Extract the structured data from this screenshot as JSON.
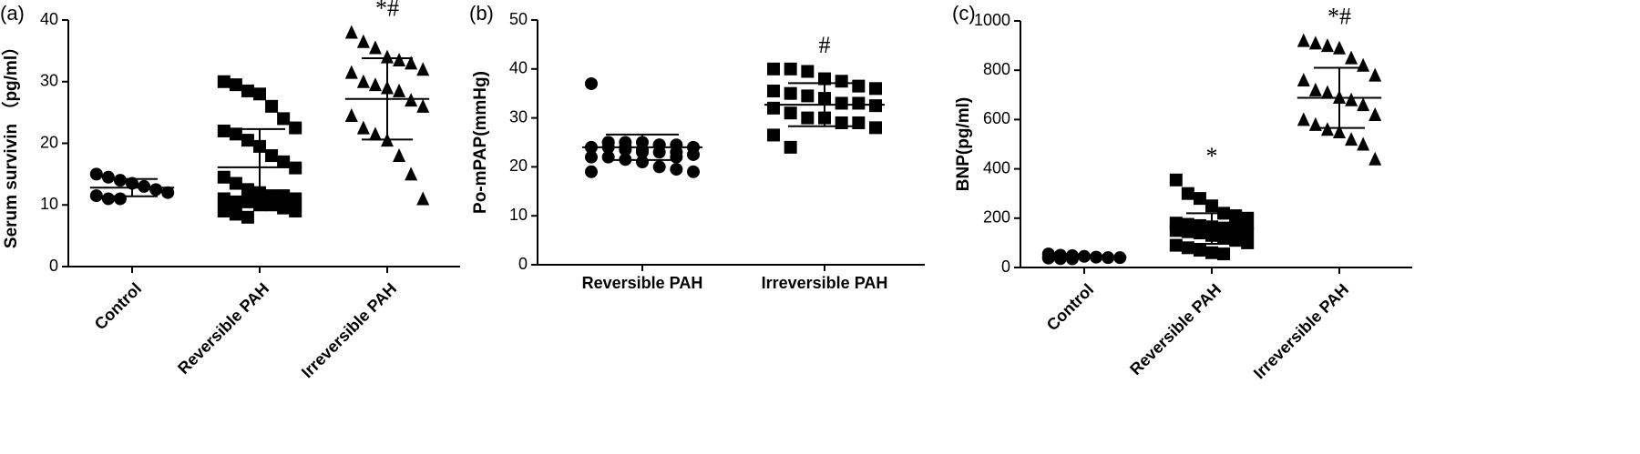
{
  "chart_data": [
    {
      "type": "strip",
      "panel_label": "(a)",
      "ylabel": "Serum survivin （pg/ml）",
      "categories": [
        "Control",
        "Reversible PAH",
        "Irreversible PAH"
      ],
      "markers": [
        "circle",
        "square",
        "triangle"
      ],
      "color": "#000000",
      "xtick_rotation": 45,
      "values": [
        [
          15,
          14.5,
          14,
          13.5,
          13,
          12.5,
          12,
          11.5,
          11,
          11
        ],
        [
          30,
          29.5,
          28.5,
          28,
          26,
          24,
          22.5,
          22,
          21.5,
          20.5,
          19.5,
          18,
          17,
          16,
          14.5,
          13.5,
          12.5,
          12,
          11.5,
          11.5,
          11,
          11,
          10.5,
          10.5,
          10,
          10,
          9.5,
          9,
          9,
          8.5,
          8
        ],
        [
          38,
          36.5,
          35.5,
          34,
          33.5,
          33,
          32,
          31.5,
          30,
          29.5,
          29,
          28.5,
          27,
          26,
          24.5,
          22.5,
          21.5,
          20.5,
          18,
          15,
          11
        ]
      ],
      "means": [
        12.8,
        16.1,
        27.2
      ],
      "sds": [
        1.4,
        6.2,
        6.6
      ],
      "annotations": [
        null,
        null,
        "*#"
      ],
      "ylim": [
        0,
        40
      ],
      "yticks": [
        0,
        10,
        20,
        30,
        40
      ]
    },
    {
      "type": "strip",
      "panel_label": "(b)",
      "ylabel": "Po-mPAP(mmHg)",
      "categories": [
        "Reversible PAH",
        "Irreversible PAH"
      ],
      "markers": [
        "circle",
        "square"
      ],
      "color": "#000000",
      "xtick_rotation": 0,
      "values": [
        [
          37,
          25,
          25,
          25,
          24.5,
          24.5,
          24,
          24,
          24,
          23.5,
          23.5,
          23,
          23,
          22.5,
          22,
          22,
          21.5,
          21,
          20,
          19.5,
          19,
          19,
          25,
          24,
          23,
          24.5,
          22
        ],
        [
          40,
          40,
          39.5,
          38,
          37.5,
          36.5,
          36,
          35.5,
          35,
          34.5,
          34,
          33,
          33,
          32.5,
          32,
          31,
          30,
          30,
          29,
          29,
          28,
          26.5,
          24
        ]
      ],
      "means": [
        24,
        32.7
      ],
      "sds": [
        2.6,
        4.4
      ],
      "annotations": [
        null,
        "#"
      ],
      "ylim": [
        0,
        50
      ],
      "yticks": [
        0,
        10,
        20,
        30,
        40,
        50
      ]
    },
    {
      "type": "strip",
      "panel_label": "(c)",
      "ylabel": "BNP(pg/ml)",
      "categories": [
        "Control",
        "Reversible PAH",
        "Irreversible PAH"
      ],
      "markers": [
        "circle",
        "square",
        "triangle"
      ],
      "color": "#000000",
      "xtick_rotation": 45,
      "values": [
        [
          55,
          50,
          48,
          45,
          42,
          40,
          40,
          38,
          36,
          35
        ],
        [
          355,
          300,
          280,
          250,
          220,
          210,
          200,
          180,
          175,
          170,
          165,
          160,
          160,
          150,
          150,
          145,
          140,
          130,
          120,
          110,
          100,
          90,
          80,
          70,
          60,
          55
        ],
        [
          920,
          910,
          900,
          890,
          850,
          820,
          780,
          760,
          720,
          710,
          690,
          680,
          660,
          620,
          600,
          580,
          560,
          550,
          520,
          500,
          440
        ]
      ],
      "means": [
        43,
        158,
        688
      ],
      "sds": [
        6,
        62,
        122
      ],
      "annotations": [
        null,
        "*",
        "*#"
      ],
      "ylim": [
        0,
        1000
      ],
      "yticks": [
        0,
        200,
        400,
        600,
        800,
        1000
      ]
    }
  ]
}
